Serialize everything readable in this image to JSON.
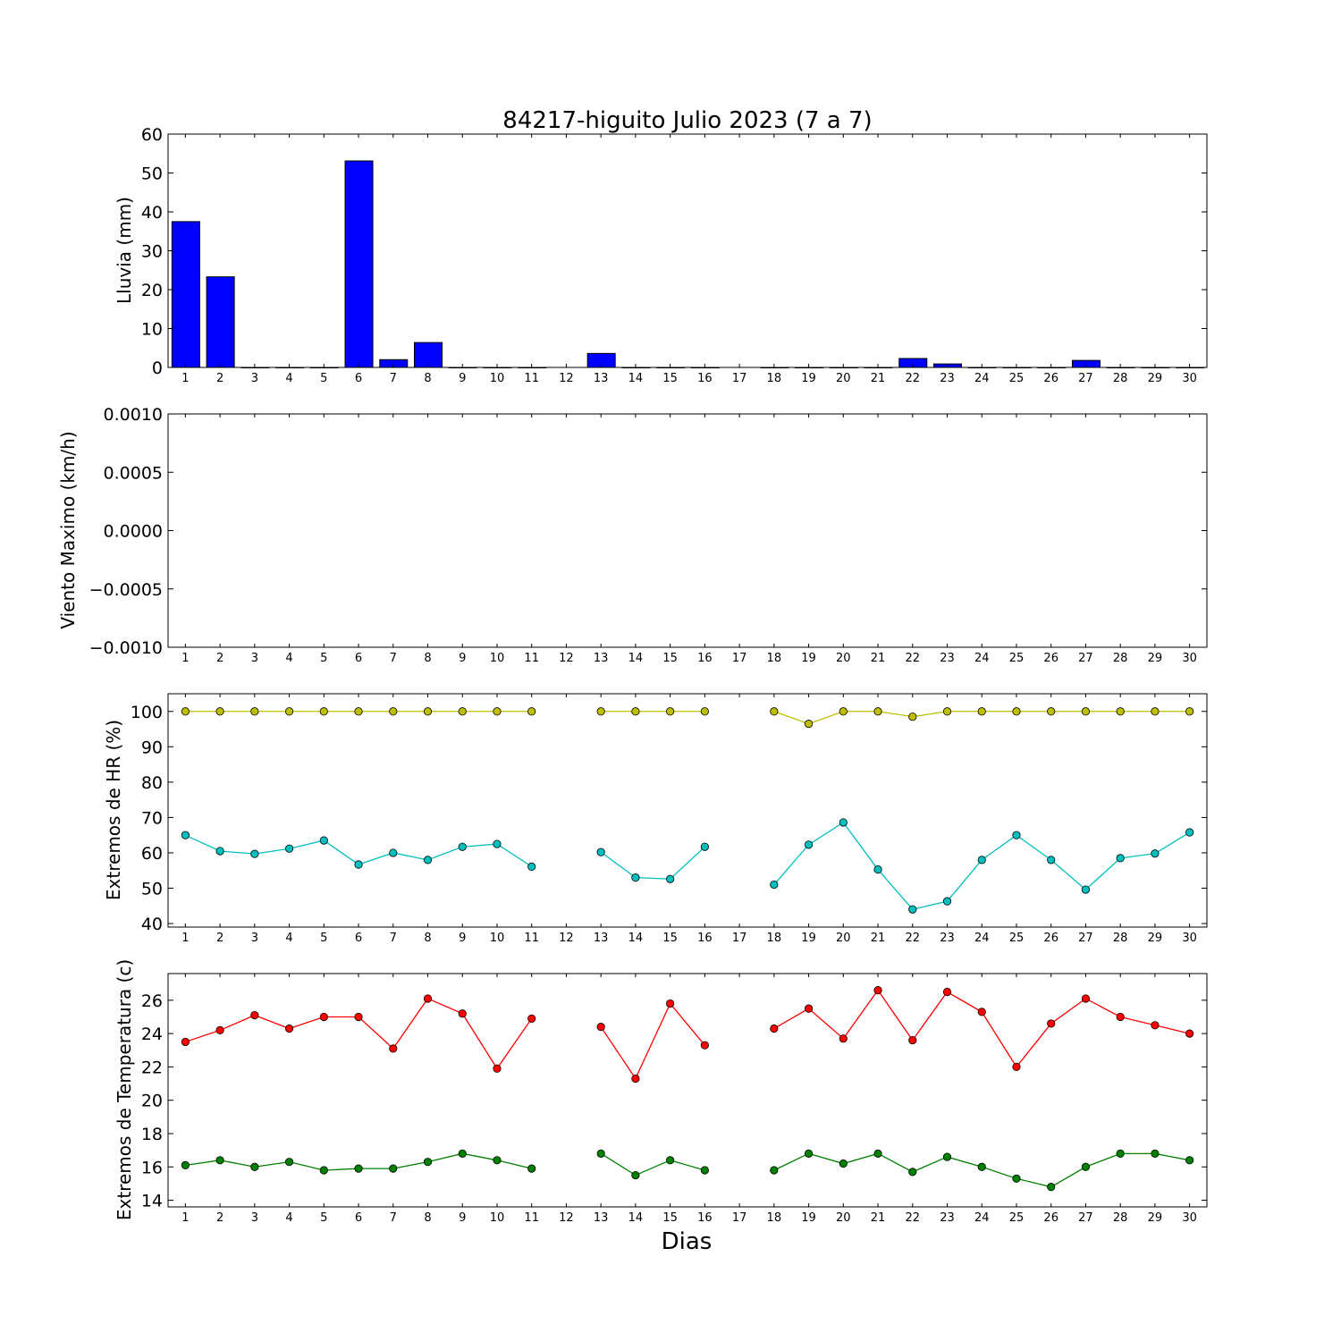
{
  "chart_data": [
    {
      "type": "bar",
      "title": "84217-higuito Julio 2023  (7 a 7)",
      "ylabel": "Lluvia (mm)",
      "xlabel": "",
      "ylim": [
        0,
        60
      ],
      "yticks": [
        "0",
        "10",
        "20",
        "30",
        "40",
        "50",
        "60"
      ],
      "categories": [
        "1",
        "2",
        "3",
        "4",
        "5",
        "6",
        "7",
        "8",
        "9",
        "10",
        "11",
        "12",
        "13",
        "14",
        "15",
        "16",
        "17",
        "18",
        "19",
        "20",
        "21",
        "22",
        "23",
        "24",
        "25",
        "26",
        "27",
        "28",
        "29",
        "30"
      ],
      "values": [
        37.5,
        23.3,
        0,
        0,
        0,
        53.1,
        2.0,
        6.4,
        0,
        0,
        0,
        null,
        3.6,
        0,
        0,
        0,
        null,
        0,
        0,
        0,
        0,
        2.3,
        0.9,
        0,
        0,
        0,
        1.8,
        0,
        0,
        0
      ],
      "color": "#0000ff"
    },
    {
      "type": "line",
      "title": "",
      "ylabel": "Viento Maximo (km/h)",
      "xlabel": "",
      "ylim": [
        -0.001,
        0.001
      ],
      "yticks": [
        "−0.0010",
        "−0.0005",
        "0.0000",
        "0.0005",
        "0.0010"
      ],
      "categories": [
        "1",
        "2",
        "3",
        "4",
        "5",
        "6",
        "7",
        "8",
        "9",
        "10",
        "11",
        "12",
        "13",
        "14",
        "15",
        "16",
        "17",
        "18",
        "19",
        "20",
        "21",
        "22",
        "23",
        "24",
        "25",
        "26",
        "27",
        "28",
        "29",
        "30"
      ],
      "series": []
    },
    {
      "type": "line",
      "title": "",
      "ylabel": "Extremos de HR (%)",
      "xlabel": "",
      "ylim": [
        39,
        105
      ],
      "yticks": [
        "40",
        "50",
        "60",
        "70",
        "80",
        "90",
        "100"
      ],
      "categories": [
        "1",
        "2",
        "3",
        "4",
        "5",
        "6",
        "7",
        "8",
        "9",
        "10",
        "11",
        "12",
        "13",
        "14",
        "15",
        "16",
        "17",
        "18",
        "19",
        "20",
        "21",
        "22",
        "23",
        "24",
        "25",
        "26",
        "27",
        "28",
        "29",
        "30"
      ],
      "series": [
        {
          "color": "#bfbf00",
          "values": [
            100,
            100,
            100,
            100,
            100,
            100,
            100,
            100,
            100,
            100,
            100,
            null,
            100,
            100,
            100,
            100,
            null,
            100,
            96.5,
            100,
            100,
            98.5,
            100,
            100,
            100,
            100,
            100,
            100,
            100,
            100
          ]
        },
        {
          "color": "#00bfbf",
          "values": [
            65,
            60.5,
            59.7,
            61.2,
            63.5,
            56.7,
            60,
            58,
            61.7,
            62.5,
            56.1,
            null,
            60.2,
            53,
            52.6,
            61.7,
            null,
            51,
            62.3,
            68.6,
            55.3,
            44,
            46.3,
            58,
            65,
            58,
            49.6,
            58.5,
            59.8,
            65.8
          ]
        }
      ]
    },
    {
      "type": "line",
      "title": "",
      "ylabel": "Extremos de Temperatura (c)",
      "xlabel": "Dias",
      "ylim": [
        13.6,
        27.6
      ],
      "yticks": [
        "14",
        "16",
        "18",
        "20",
        "22",
        "24",
        "26"
      ],
      "categories": [
        "1",
        "2",
        "3",
        "4",
        "5",
        "6",
        "7",
        "8",
        "9",
        "10",
        "11",
        "12",
        "13",
        "14",
        "15",
        "16",
        "17",
        "18",
        "19",
        "20",
        "21",
        "22",
        "23",
        "24",
        "25",
        "26",
        "27",
        "28",
        "29",
        "30"
      ],
      "series": [
        {
          "color": "#ff0000",
          "values": [
            23.5,
            24.2,
            25.1,
            24.3,
            25,
            25,
            23.1,
            26.1,
            25.2,
            21.9,
            24.9,
            null,
            24.4,
            21.3,
            25.8,
            23.3,
            null,
            24.3,
            25.5,
            23.7,
            26.6,
            23.6,
            26.5,
            25.3,
            22,
            24.6,
            26.1,
            25,
            24.5,
            24
          ]
        },
        {
          "color": "#008000",
          "values": [
            16.1,
            16.4,
            16,
            16.3,
            15.8,
            15.9,
            15.9,
            16.3,
            16.8,
            16.4,
            15.9,
            null,
            16.8,
            15.5,
            16.4,
            15.8,
            null,
            15.8,
            16.8,
            16.2,
            16.8,
            15.7,
            16.6,
            16,
            15.3,
            14.8,
            16,
            16.8,
            16.8,
            16.4
          ]
        }
      ]
    }
  ]
}
